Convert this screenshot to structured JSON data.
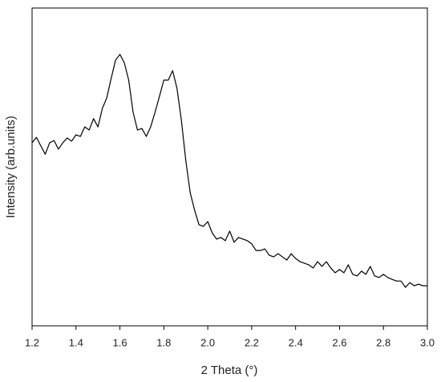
{
  "chart_data": {
    "type": "line",
    "x_label": "2 Theta (°)",
    "y_label": "Intensity (arb.units)",
    "x": [
      1.2,
      1.22,
      1.24,
      1.26,
      1.28,
      1.3,
      1.32,
      1.34,
      1.36,
      1.38,
      1.4,
      1.42,
      1.44,
      1.46,
      1.48,
      1.5,
      1.52,
      1.54,
      1.56,
      1.58,
      1.6,
      1.62,
      1.64,
      1.66,
      1.68,
      1.7,
      1.72,
      1.74,
      1.76,
      1.78,
      1.8,
      1.82,
      1.84,
      1.86,
      1.88,
      1.9,
      1.92,
      1.94,
      1.96,
      1.98,
      2.0,
      2.02,
      2.04,
      2.06,
      2.08,
      2.1,
      2.12,
      2.14,
      2.16,
      2.18,
      2.2,
      2.22,
      2.24,
      2.26,
      2.28,
      2.3,
      2.32,
      2.34,
      2.36,
      2.38,
      2.4,
      2.42,
      2.44,
      2.46,
      2.48,
      2.5,
      2.52,
      2.54,
      2.56,
      2.58,
      2.6,
      2.62,
      2.64,
      2.66,
      2.68,
      2.7,
      2.72,
      2.74,
      2.76,
      2.78,
      2.8,
      2.82,
      2.84,
      2.86,
      2.88,
      2.9,
      2.92,
      2.94,
      2.96,
      2.98,
      3.0
    ],
    "series": [
      {
        "color": "#000000",
        "values": [
          57.6,
          59.3,
          56.6,
          54.0,
          57.6,
          58.3,
          55.6,
          57.6,
          59.1,
          58.1,
          60.1,
          59.6,
          62.6,
          61.6,
          65.2,
          62.6,
          68.4,
          71.7,
          77.8,
          83.6,
          85.4,
          82.8,
          77.3,
          67.2,
          61.6,
          62.1,
          59.6,
          62.6,
          67.2,
          72.2,
          77.3,
          77.3,
          80.3,
          74.7,
          64.6,
          52.0,
          41.9,
          36.4,
          31.8,
          31.3,
          32.8,
          29.3,
          27.3,
          27.8,
          26.8,
          29.8,
          26.3,
          27.8,
          27.3,
          26.8,
          25.8,
          23.7,
          23.7,
          24.2,
          22.2,
          21.7,
          22.7,
          21.7,
          20.7,
          22.7,
          21.2,
          20.2,
          19.7,
          19.2,
          18.2,
          20.2,
          18.7,
          20.2,
          18.2,
          16.7,
          17.7,
          16.7,
          19.2,
          16.2,
          15.7,
          17.2,
          16.2,
          18.7,
          15.7,
          15.2,
          16.2,
          15.2,
          14.6,
          14.1,
          14.1,
          12.1,
          13.6,
          12.6,
          13.1,
          12.6,
          12.6
        ]
      }
    ],
    "xlim": [
      1.2,
      3.0
    ],
    "xticks": [
      1.2,
      1.4,
      1.6,
      1.8,
      {
        "value": 2,
        "label": "2.0"
      },
      2.2,
      2.4,
      2.6,
      2.8,
      {
        "value": 3,
        "label": "3.0"
      }
    ],
    "ylim": [
      0,
      100
    ]
  }
}
